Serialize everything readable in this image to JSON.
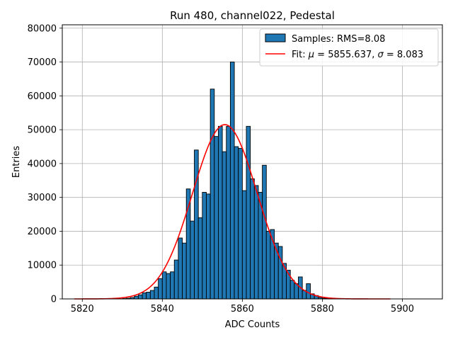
{
  "chart_data": {
    "type": "bar",
    "title": "Run 480, channel022, Pedestal",
    "xlabel": "ADC Counts",
    "ylabel": "Entries",
    "xlim": [
      5815,
      5910
    ],
    "ylim": [
      0,
      81000
    ],
    "xticks": [
      5820,
      5840,
      5860,
      5880,
      5900
    ],
    "yticks": [
      0,
      10000,
      20000,
      30000,
      40000,
      50000,
      60000,
      70000,
      80000
    ],
    "grid": true,
    "legend_position": "top-right",
    "histogram": {
      "name": "Samples: RMS=8.08",
      "color": "#1f77b4",
      "bin_width": 1,
      "bin_start": 5830,
      "values": [
        100,
        200,
        400,
        800,
        1200,
        1800,
        2000,
        2500,
        3500,
        6000,
        8000,
        7500,
        8000,
        11500,
        18000,
        16500,
        32500,
        23000,
        44000,
        24000,
        31500,
        31000,
        62000,
        48000,
        51000,
        43500,
        51000,
        70000,
        45000,
        44500,
        32000,
        51000,
        35500,
        33500,
        31500,
        39500,
        20000,
        20500,
        16500,
        15500,
        10500,
        8500,
        5500,
        4500,
        6500,
        2500,
        4500,
        1500,
        1000,
        400,
        200,
        100
      ]
    },
    "fit": {
      "name_prefix": "Fit: ",
      "mu_symbol": "μ",
      "sigma_symbol": "σ",
      "label_mid": " = 5855.637, ",
      "label_end": " = 8.083",
      "mu": 5855.637,
      "sigma": 8.083,
      "amplitude": 51500,
      "x_range": [
        5818,
        5897
      ],
      "color": "#ff0000"
    }
  }
}
